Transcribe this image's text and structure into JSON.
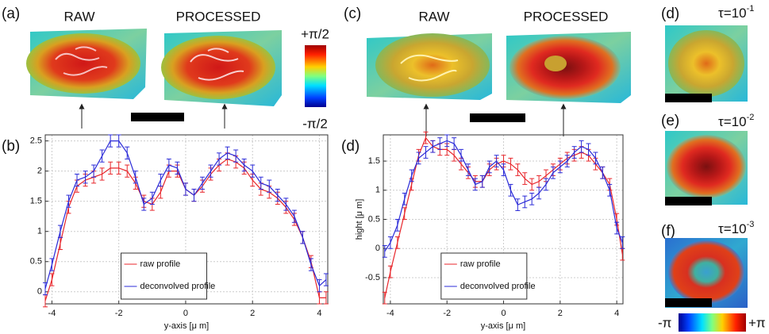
{
  "labels": {
    "a": "(a)",
    "c": "(c)",
    "d": "(d)",
    "e": "(e)",
    "f": "(f)"
  },
  "raw": "RAW",
  "processed": "PROCESSED",
  "colorbar_top": "+π/2",
  "colorbar_bottom": "-π/2",
  "tau": [
    {
      "base": "τ=10",
      "exponent": "-1"
    },
    {
      "base": "τ=10",
      "exponent": "-2"
    },
    {
      "base": "τ=10",
      "exponent": "-3"
    }
  ],
  "phase_min": "-π",
  "phase_max": "+π",
  "chart_data": [
    {
      "type": "line",
      "label": "(b)",
      "xlabel": "y-axis [μ m]",
      "x": [
        -4.2,
        -4,
        -3.75,
        -3.5,
        -3.25,
        -3,
        -2.75,
        -2.5,
        -2.25,
        -2,
        -1.75,
        -1.5,
        -1.25,
        -1,
        -0.75,
        -0.5,
        -0.25,
        0,
        0.25,
        0.5,
        0.75,
        1,
        1.25,
        1.5,
        1.75,
        2,
        2.25,
        2.5,
        2.75,
        3,
        3.25,
        3.5,
        3.75,
        4,
        4.2
      ],
      "series": [
        {
          "name": "raw profile",
          "color": "#e8262b",
          "error": 0.1,
          "values": [
            -0.15,
            0.2,
            0.8,
            1.4,
            1.75,
            1.85,
            1.9,
            1.95,
            2.05,
            2.05,
            2.0,
            1.8,
            1.5,
            1.45,
            1.65,
            2.0,
            2.0,
            1.7,
            1.6,
            1.75,
            1.95,
            2.1,
            2.2,
            2.15,
            2.05,
            1.85,
            1.7,
            1.65,
            1.55,
            1.4,
            1.2,
            0.9,
            0.5,
            -0.1,
            -0.1
          ]
        },
        {
          "name": "deconvolved profile",
          "color": "#2b2bd8",
          "error": 0.1,
          "values": [
            0.05,
            0.45,
            1.0,
            1.5,
            1.85,
            1.9,
            2.0,
            2.25,
            2.5,
            2.5,
            2.3,
            1.9,
            1.45,
            1.55,
            1.85,
            2.1,
            2.05,
            1.7,
            1.6,
            1.8,
            2.0,
            2.2,
            2.3,
            2.25,
            2.1,
            2.0,
            1.8,
            1.75,
            1.6,
            1.45,
            1.25,
            0.9,
            0.45,
            0.1,
            0.2
          ]
        }
      ],
      "xlim": [
        -4.2,
        4.25
      ],
      "ylim": [
        -0.2,
        2.6
      ],
      "xticks": [
        -4,
        -2,
        0,
        2,
        4
      ],
      "yticks": [
        0,
        0.5,
        1,
        1.5,
        2,
        2.5
      ],
      "grid": true,
      "legend": "lower-center"
    },
    {
      "type": "line",
      "label": "(d)",
      "xlabel": "y-axis [μ m]",
      "ylabel": "hight [μ m]",
      "x": [
        -4.2,
        -4,
        -3.75,
        -3.5,
        -3.25,
        -3,
        -2.75,
        -2.5,
        -2.25,
        -2,
        -1.75,
        -1.5,
        -1.25,
        -1,
        -0.75,
        -0.5,
        -0.25,
        0,
        0.25,
        0.5,
        0.75,
        1,
        1.25,
        1.5,
        1.75,
        2,
        2.25,
        2.5,
        2.75,
        3,
        3.25,
        3.5,
        3.75,
        4,
        4.2
      ],
      "series": [
        {
          "name": "raw profile",
          "color": "#e8262b",
          "error": 0.1,
          "values": [
            -0.85,
            -0.4,
            0.1,
            0.6,
            1.1,
            1.6,
            1.9,
            1.75,
            1.7,
            1.7,
            1.6,
            1.45,
            1.3,
            1.15,
            1.15,
            1.35,
            1.45,
            1.5,
            1.45,
            1.35,
            1.2,
            1.1,
            1.15,
            1.25,
            1.35,
            1.45,
            1.55,
            1.6,
            1.65,
            1.6,
            1.45,
            1.3,
            1.1,
            0.5,
            -0.1
          ]
        },
        {
          "name": "deconvolved profile",
          "color": "#2b2bd8",
          "error": 0.1,
          "values": [
            -0.05,
            0.1,
            0.4,
            0.85,
            1.25,
            1.55,
            1.65,
            1.75,
            1.8,
            1.85,
            1.8,
            1.6,
            1.35,
            1.1,
            1.15,
            1.4,
            1.5,
            1.35,
            1.0,
            0.75,
            0.8,
            0.85,
            0.95,
            1.1,
            1.3,
            1.4,
            1.5,
            1.65,
            1.75,
            1.7,
            1.55,
            1.3,
            1.0,
            0.35,
            0.1
          ]
        }
      ],
      "xlim": [
        -4.25,
        4.22
      ],
      "ylim": [
        -0.95,
        1.95
      ],
      "xticks": [
        -4,
        -2,
        0,
        2,
        4
      ],
      "yticks": [
        -0.5,
        0,
        0.5,
        1,
        1.5
      ],
      "grid": true,
      "legend": "lower-center"
    }
  ]
}
